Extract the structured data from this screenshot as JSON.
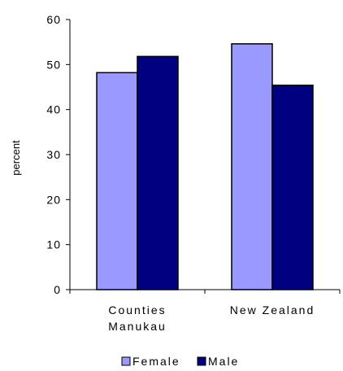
{
  "chart_data": {
    "type": "bar",
    "categories": [
      [
        "Counties",
        "Manukau"
      ],
      [
        "New Zealand"
      ]
    ],
    "series": [
      {
        "name": "Female",
        "values": [
          48.2,
          54.6
        ],
        "color": "#9999ff"
      },
      {
        "name": "Male",
        "values": [
          51.8,
          45.4
        ],
        "color": "#000080"
      }
    ],
    "ylabel": "percent",
    "ylim": [
      0,
      60
    ],
    "yticks": [
      0,
      10,
      20,
      30,
      40,
      50,
      60
    ],
    "grid": false,
    "legend": "bottom"
  }
}
